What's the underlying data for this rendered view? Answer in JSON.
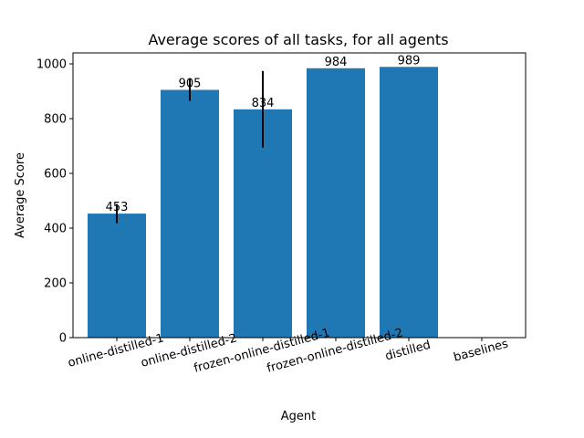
{
  "chart_data": {
    "type": "bar",
    "title": "Average scores of all tasks, for all agents",
    "xlabel": "Agent",
    "ylabel": "Average Score",
    "categories": [
      "online-distilled-1",
      "online-distilled-2",
      "frozen-online-distilled-1",
      "frozen-online-distilled-2",
      "distilled",
      "baselines"
    ],
    "values": [
      453,
      905,
      834,
      984,
      989,
      null
    ],
    "data_labels": [
      "453",
      "905",
      "834",
      "984",
      "989",
      ""
    ],
    "errors": [
      35,
      40,
      140,
      0,
      0,
      null
    ],
    "ylim": [
      0,
      1040
    ],
    "yticks": [
      0,
      200,
      400,
      600,
      800,
      1000
    ],
    "grid": false,
    "bar_color": "#1f77b4",
    "error_color": "#000000"
  }
}
